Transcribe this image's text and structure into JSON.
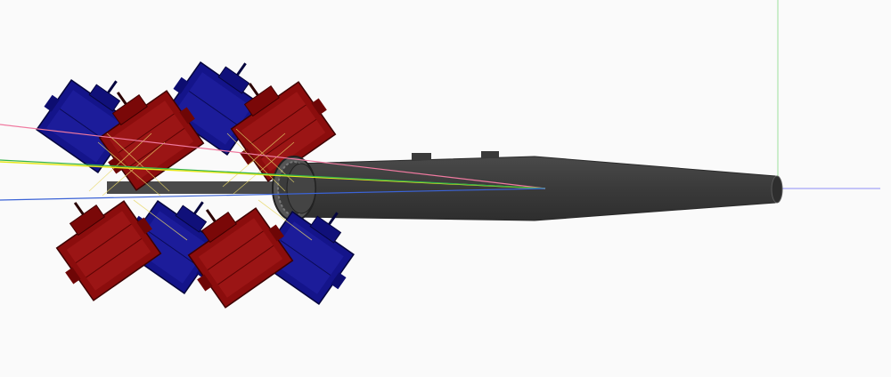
{
  "viewport": {
    "background": "#fafafa",
    "axis_colors": {
      "x": "#8f8ff5",
      "y": "#9fe09f",
      "z": "#f29ab0"
    },
    "ray_colors": [
      "#f07aa0",
      "#e7e81c",
      "#33b24a",
      "#3b63d6"
    ]
  },
  "model": {
    "shaft_color": "#3c3c3c",
    "shaft_edge_color": "#6a6a6a",
    "motor_colors": {
      "red": "#8b0d0d",
      "blue": "#14148a"
    }
  }
}
